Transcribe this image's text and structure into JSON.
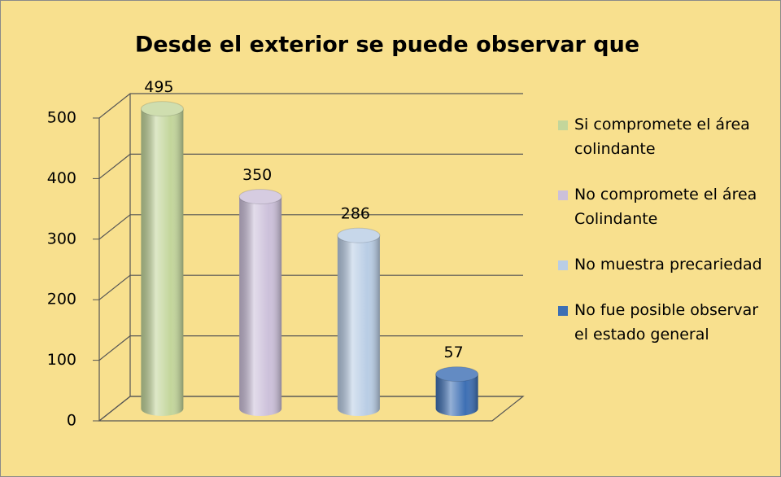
{
  "chart_data": {
    "type": "bar3d",
    "title": "Desde el exterior se puede observar que",
    "series": [
      {
        "name": "Si compromete el área colindante",
        "color": "#c3d69b",
        "values": [
          495
        ]
      },
      {
        "name": "No compromete el área Colindante",
        "color": "#ccc0da",
        "values": [
          350
        ]
      },
      {
        "name": "No muestra precariedad",
        "color": "#b9cde5",
        "values": [
          286
        ]
      },
      {
        "name": "No fue posible observar el estado general",
        "color": "#3d6fb4",
        "values": [
          57
        ]
      }
    ],
    "ylim": [
      0,
      500
    ],
    "yticks": [
      0,
      100,
      200,
      300,
      400,
      500
    ],
    "grid": true,
    "legend": "right"
  }
}
